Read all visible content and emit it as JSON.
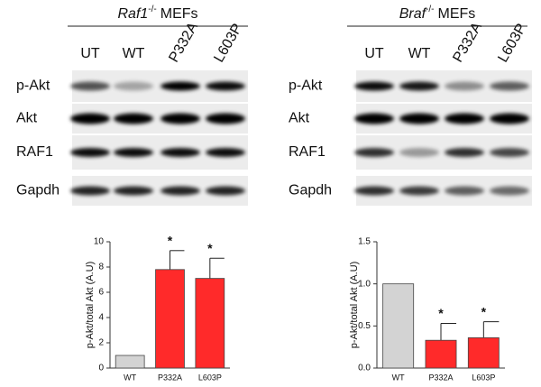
{
  "blots": [
    {
      "title_gene": "Raf1",
      "title_superscript": "-/-",
      "title_suffix": "MEFs",
      "lanes": [
        "UT",
        "WT",
        "P332A",
        "L603P"
      ],
      "rows": [
        "p-Akt",
        "Akt",
        "RAF1",
        "Gapdh"
      ]
    },
    {
      "title_gene": "Braf",
      "title_superscript": "-/-",
      "title_suffix": "MEFs",
      "lanes": [
        "UT",
        "WT",
        "P332A",
        "L603P"
      ],
      "rows": [
        "p-Akt",
        "Akt",
        "RAF1",
        "Gapdh"
      ]
    }
  ],
  "chart_data": [
    {
      "type": "bar",
      "y_label": "p-Akt/total Akt (A.U)",
      "categories": [
        "WT",
        "P332A",
        "L603P"
      ],
      "values": [
        1,
        7.8,
        7.1
      ],
      "errors": [
        0,
        1.5,
        1.6
      ],
      "colors": [
        "#d3d3d3",
        "#ff2a2a",
        "#ff2a2a"
      ],
      "significance_labels": [
        null,
        "*",
        "*"
      ],
      "ylim": [
        0,
        10
      ],
      "yticks": [
        0,
        2,
        4,
        6,
        8,
        10
      ]
    },
    {
      "type": "bar",
      "y_label": "p-Akt/total Akt (A.U)",
      "categories": [
        "WT",
        "P332A",
        "L603P"
      ],
      "values": [
        1,
        0.33,
        0.36
      ],
      "errors": [
        0,
        0.2,
        0.19
      ],
      "colors": [
        "#d3d3d3",
        "#ff2a2a",
        "#ff2a2a"
      ],
      "significance_labels": [
        null,
        "*",
        "*"
      ],
      "ylim": [
        0,
        1.5
      ],
      "yticks": [
        {
          "value": 0,
          "label": "0.0"
        },
        0.5,
        {
          "value": 1,
          "label": "1.0"
        },
        1.5
      ]
    }
  ]
}
